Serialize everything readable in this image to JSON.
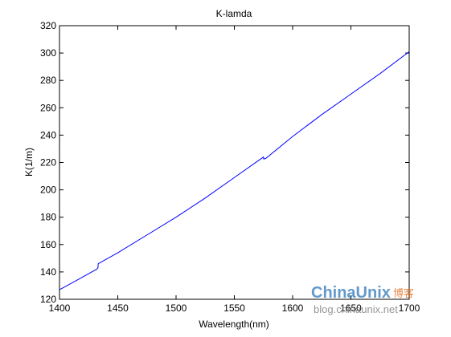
{
  "chart_data": {
    "type": "line",
    "title": "K-lamda",
    "xlabel": "Wavelength(nm)",
    "ylabel": "K(1/m)",
    "xlim": [
      1400,
      1700
    ],
    "ylim": [
      120,
      320
    ],
    "xticks": [
      1400,
      1450,
      1500,
      1550,
      1600,
      1650,
      1700
    ],
    "yticks": [
      120,
      140,
      160,
      180,
      200,
      220,
      240,
      260,
      280,
      300,
      320
    ],
    "grid": false,
    "line_color": "#0000ff",
    "series": [
      {
        "x": [
          1400,
          1415,
          1432,
          1433,
          1433.2,
          1450,
          1475,
          1500,
          1525,
          1550,
          1575,
          1575.2,
          1577,
          1600,
          1625,
          1650,
          1675,
          1700
        ],
        "y": [
          127,
          134,
          142,
          143,
          146,
          154,
          167,
          180,
          194,
          209,
          224,
          222.5,
          223,
          239,
          255,
          270,
          285,
          301
        ]
      }
    ]
  },
  "watermark": {
    "brand": "ChinaUnix",
    "brand_cn": "博客",
    "url": "blog.chinaunix.net"
  }
}
